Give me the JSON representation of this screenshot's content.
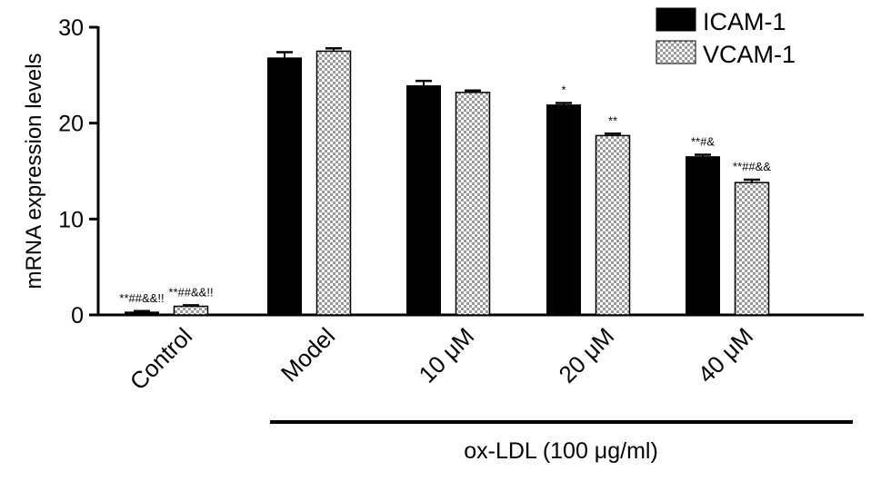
{
  "chart_data": {
    "type": "bar",
    "categories": [
      "Control",
      "Model",
      "10 μM",
      "20 μM",
      "40 μM"
    ],
    "series": [
      {
        "name": "ICAM-1",
        "color": "#000000",
        "pattern": "solid",
        "values": [
          0.3,
          26.8,
          23.9,
          21.9,
          16.5
        ],
        "errors": [
          0.1,
          0.6,
          0.5,
          0.2,
          0.2
        ],
        "annotations": [
          "**##&&!!",
          "",
          "",
          "*",
          "**#&"
        ]
      },
      {
        "name": "VCAM-1",
        "color": "#bdbdbd",
        "pattern": "checkered",
        "values": [
          0.9,
          27.5,
          23.2,
          18.7,
          13.8
        ],
        "errors": [
          0.1,
          0.3,
          0.2,
          0.2,
          0.3
        ],
        "annotations": [
          "**##&&!!",
          "",
          "",
          "**",
          "**##&&"
        ]
      }
    ],
    "ylabel": "mRNA expression levels",
    "xlabel": "",
    "ylim": [
      0,
      30
    ],
    "yticks": [
      0,
      10,
      20,
      30
    ],
    "group_label": "ox-LDL (100 μg/ml)",
    "legend_position": "top-right",
    "grid": false
  }
}
